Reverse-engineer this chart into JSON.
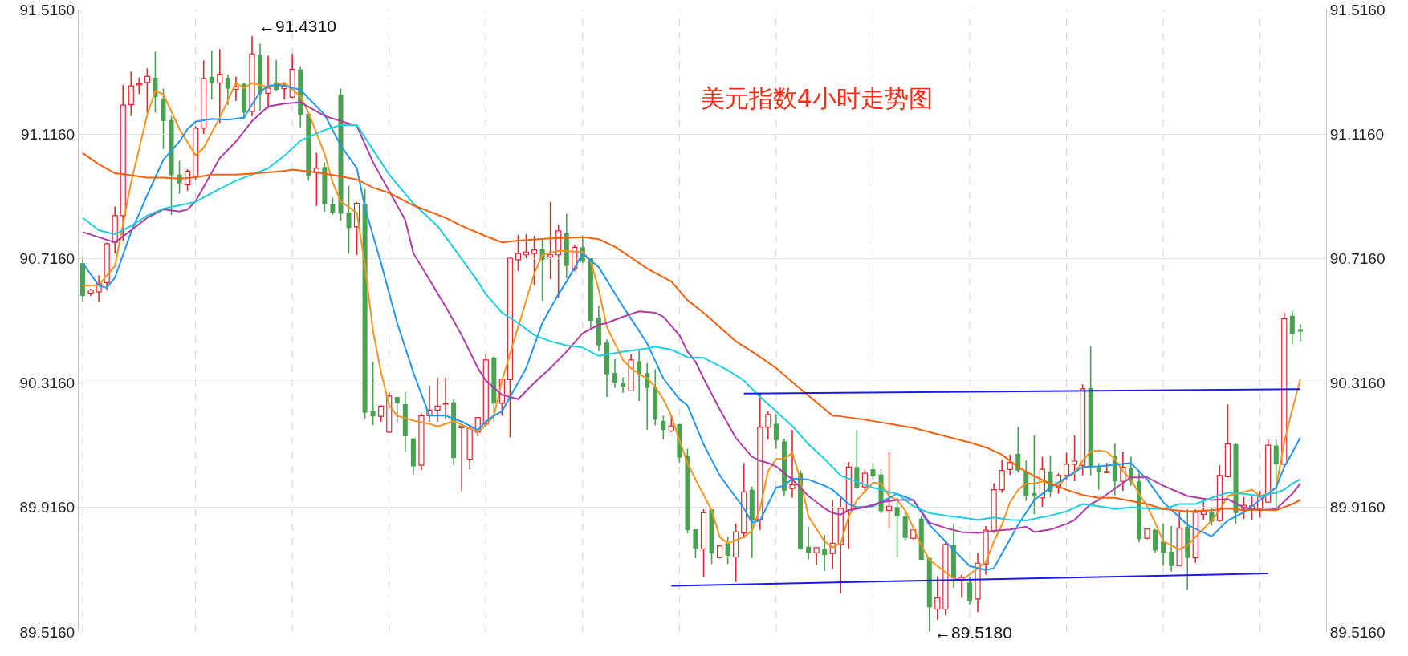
{
  "chart_data": {
    "type": "candlestick",
    "title": "美元指数4小时走势图",
    "categories": [
      null,
      null,
      null,
      null,
      null,
      null,
      null,
      null,
      null,
      null,
      null,
      null,
      null,
      null,
      null,
      null,
      null,
      null,
      null,
      null,
      null,
      null,
      null,
      null,
      null,
      null,
      null,
      null,
      null,
      null,
      null,
      null,
      null,
      null,
      null,
      null,
      null,
      null,
      null,
      null,
      null,
      null,
      null,
      null,
      null,
      null,
      null,
      null,
      null,
      null,
      null,
      null,
      null,
      null,
      null,
      null,
      null,
      null,
      null,
      null,
      null,
      null,
      null,
      null,
      null,
      null,
      null,
      null,
      null,
      null,
      null,
      null,
      null,
      null,
      null,
      null,
      null,
      null,
      null,
      null,
      null,
      null,
      null,
      null,
      null,
      null,
      null,
      null,
      null,
      null,
      null,
      null,
      null,
      null,
      null,
      null,
      null,
      null,
      null,
      null,
      null,
      null,
      null,
      null,
      null,
      null,
      null,
      null,
      null,
      null,
      null,
      null,
      null,
      null,
      null,
      null,
      null,
      null,
      null,
      null,
      null,
      null,
      null,
      null,
      null,
      null,
      null,
      null,
      null,
      null,
      null,
      null,
      null,
      null,
      null,
      null,
      null,
      null,
      null,
      null,
      null,
      null,
      null,
      null,
      null,
      null,
      null,
      null,
      null,
      null,
      null,
      null
    ],
    "ohlc": [
      [
        90.701,
        90.721,
        90.578,
        90.596
      ],
      [
        90.605,
        90.619,
        90.596,
        90.615
      ],
      [
        90.609,
        90.662,
        90.578,
        90.635
      ],
      [
        90.639,
        90.768,
        90.615,
        90.764
      ],
      [
        90.768,
        90.883,
        90.732,
        90.854
      ],
      [
        90.854,
        91.274,
        90.774,
        91.209
      ],
      [
        91.211,
        91.317,
        91.174,
        91.271
      ],
      [
        91.274,
        91.298,
        91.244,
        91.278
      ],
      [
        91.282,
        91.327,
        91.185,
        91.301
      ],
      [
        91.297,
        91.38,
        91.185,
        91.234
      ],
      [
        91.229,
        91.262,
        91.068,
        91.158
      ],
      [
        91.161,
        91.174,
        90.856,
        90.984
      ],
      [
        90.986,
        91.03,
        90.924,
        90.957
      ],
      [
        90.953,
        91.003,
        90.933,
        90.997
      ],
      [
        90.98,
        91.141,
        90.97,
        91.135
      ],
      [
        91.135,
        91.353,
        91.116,
        91.295
      ],
      [
        91.3,
        91.384,
        91.227,
        91.28
      ],
      [
        91.28,
        91.389,
        91.152,
        91.308
      ],
      [
        91.297,
        91.307,
        91.209,
        91.262
      ],
      [
        91.26,
        91.301,
        91.222,
        91.268
      ],
      [
        91.278,
        91.278,
        91.165,
        91.185
      ],
      [
        91.188,
        91.431,
        91.174,
        91.374
      ],
      [
        91.37,
        91.406,
        91.191,
        91.244
      ],
      [
        91.247,
        91.368,
        91.198,
        91.264
      ],
      [
        91.282,
        91.354,
        91.254,
        91.258
      ],
      [
        91.262,
        91.284,
        91.227,
        91.271
      ],
      [
        91.235,
        91.374,
        91.231,
        91.324
      ],
      [
        91.324,
        91.333,
        91.136,
        91.178
      ],
      [
        91.181,
        91.181,
        90.966,
        90.982
      ],
      [
        90.993,
        91.056,
        90.885,
        91.006
      ],
      [
        91.01,
        91.025,
        90.866,
        90.891
      ],
      [
        90.891,
        90.912,
        90.857,
        90.864
      ],
      [
        91.242,
        91.262,
        90.838,
        90.86
      ],
      [
        90.864,
        90.95,
        90.732,
        90.814
      ],
      [
        90.818,
        90.898,
        90.727,
        90.893
      ],
      [
        90.891,
        90.94,
        90.201,
        90.221
      ],
      [
        90.225,
        90.384,
        90.181,
        90.209
      ],
      [
        90.209,
        90.244,
        90.191,
        90.242
      ],
      [
        90.158,
        90.287,
        90.155,
        90.274
      ],
      [
        90.271,
        90.271,
        90.191,
        90.251
      ],
      [
        90.248,
        90.287,
        90.095,
        90.145
      ],
      [
        90.138,
        90.138,
        90.021,
        90.048
      ],
      [
        90.052,
        90.218,
        90.036,
        90.211
      ],
      [
        90.211,
        90.308,
        90.191,
        90.229
      ],
      [
        90.229,
        90.334,
        90.191,
        90.242
      ],
      [
        90.248,
        90.333,
        90.201,
        90.25
      ],
      [
        90.254,
        90.264,
        90.052,
        90.075
      ],
      [
        90.172,
        90.178,
        89.968,
        90.178
      ],
      [
        90.071,
        90.18,
        90.039,
        90.17
      ],
      [
        90.158,
        90.207,
        90.145,
        90.205
      ],
      [
        90.184,
        90.409,
        90.182,
        90.39
      ],
      [
        90.398,
        90.404,
        90.191,
        90.25
      ],
      [
        90.251,
        90.329,
        90.211,
        90.329
      ],
      [
        90.327,
        90.72,
        90.141,
        90.717
      ],
      [
        90.712,
        90.792,
        90.676,
        90.732
      ],
      [
        90.728,
        90.794,
        90.714,
        90.737
      ],
      [
        90.732,
        90.789,
        90.63,
        90.744
      ],
      [
        90.748,
        90.781,
        90.58,
        90.712
      ],
      [
        90.721,
        90.898,
        90.65,
        90.728
      ],
      [
        90.728,
        90.826,
        90.59,
        90.805
      ],
      [
        90.797,
        90.86,
        90.653,
        90.692
      ],
      [
        90.684,
        90.758,
        90.675,
        90.752
      ],
      [
        90.752,
        90.789,
        90.7,
        90.706
      ],
      [
        90.717,
        90.717,
        90.493,
        90.516
      ],
      [
        90.526,
        90.565,
        90.418,
        90.437
      ],
      [
        90.446,
        90.456,
        90.271,
        90.344
      ],
      [
        90.348,
        90.393,
        90.301,
        90.317
      ],
      [
        90.317,
        90.334,
        90.284,
        90.304
      ],
      [
        90.291,
        90.409,
        90.289,
        90.39
      ],
      [
        90.386,
        90.424,
        90.258,
        90.344
      ],
      [
        90.348,
        90.38,
        90.166,
        90.3
      ],
      [
        90.304,
        90.36,
        90.18,
        90.198
      ],
      [
        90.194,
        90.211,
        90.135,
        90.165
      ],
      [
        90.162,
        90.211,
        90.158,
        90.178
      ],
      [
        90.184,
        90.184,
        90.06,
        90.076
      ],
      [
        90.081,
        90.105,
        89.833,
        89.843
      ],
      [
        89.846,
        89.846,
        89.753,
        89.783
      ],
      [
        89.783,
        89.91,
        89.692,
        89.899
      ],
      [
        89.91,
        89.91,
        89.735,
        89.768
      ],
      [
        89.755,
        89.794,
        89.752,
        89.792
      ],
      [
        89.803,
        89.822,
        89.735,
        89.761
      ],
      [
        89.757,
        89.864,
        89.676,
        89.837
      ],
      [
        89.834,
        90.059,
        89.817,
        89.966
      ],
      [
        89.973,
        89.983,
        89.754,
        89.873
      ],
      [
        89.877,
        90.283,
        89.844,
        90.174
      ],
      [
        90.174,
        90.225,
        90.135,
        90.215
      ],
      [
        90.185,
        90.215,
        90.105,
        90.132
      ],
      [
        90.128,
        90.137,
        89.952,
        89.97
      ],
      [
        89.977,
        90.165,
        89.948,
        89.989
      ],
      [
        90.026,
        90.036,
        89.779,
        89.783
      ],
      [
        89.79,
        89.854,
        89.749,
        89.77
      ],
      [
        89.77,
        89.787,
        89.73,
        89.787
      ],
      [
        89.783,
        89.827,
        89.712,
        89.763
      ],
      [
        89.768,
        89.938,
        89.719,
        89.801
      ],
      [
        89.797,
        89.947,
        89.64,
        89.913
      ],
      [
        89.907,
        90.063,
        89.784,
        90.046
      ],
      [
        90.046,
        90.165,
        89.974,
        89.98
      ],
      [
        89.982,
        90.036,
        89.962,
        90.026
      ],
      [
        90.039,
        90.059,
        90.006,
        90.016
      ],
      [
        90.022,
        90.039,
        89.897,
        89.904
      ],
      [
        89.907,
        90.094,
        89.851,
        89.92
      ],
      [
        89.917,
        89.947,
        89.755,
        89.887
      ],
      [
        89.887,
        89.907,
        89.81,
        89.818
      ],
      [
        89.817,
        89.844,
        89.813,
        89.844
      ],
      [
        89.88,
        89.887,
        89.748,
        89.748
      ],
      [
        89.754,
        89.754,
        89.518,
        89.595
      ],
      [
        89.589,
        89.695,
        89.555,
        89.625
      ],
      [
        89.589,
        89.807,
        89.57,
        89.797
      ],
      [
        89.797,
        89.864,
        89.658,
        89.688
      ],
      [
        89.684,
        89.7,
        89.626,
        89.691
      ],
      [
        89.675,
        89.692,
        89.603,
        89.615
      ],
      [
        89.622,
        89.77,
        89.58,
        89.737
      ],
      [
        89.735,
        89.856,
        89.7,
        89.843
      ],
      [
        89.841,
        89.994,
        89.834,
        89.973
      ],
      [
        89.973,
        90.069,
        89.963,
        90.035
      ],
      [
        90.038,
        90.086,
        90.02,
        90.061
      ],
      [
        90.088,
        90.175,
        90.028,
        90.035
      ],
      [
        90.032,
        90.067,
        89.937,
        89.953
      ],
      [
        89.962,
        90.148,
        89.894,
        89.953
      ],
      [
        89.947,
        90.079,
        89.918,
        90.039
      ],
      [
        90.032,
        90.084,
        89.949,
        89.966
      ],
      [
        89.98,
        90.026,
        89.96,
        90.019
      ],
      [
        90.019,
        90.092,
        90.006,
        90.055
      ],
      [
        90.055,
        90.148,
        90.0,
        90.065
      ],
      [
        90.052,
        90.312,
        90.019,
        90.297
      ],
      [
        90.3,
        90.433,
        90.019,
        90.048
      ],
      [
        90.046,
        90.059,
        89.973,
        90.03
      ],
      [
        90.028,
        90.059,
        90.028,
        90.032
      ],
      [
        90.082,
        90.121,
        89.955,
        90.0
      ],
      [
        90.0,
        90.096,
        89.969,
        90.046
      ],
      [
        90.043,
        90.079,
        89.986,
        90.0
      ],
      [
        90.0,
        90.036,
        89.804,
        89.814
      ],
      [
        89.817,
        89.85,
        89.813,
        89.847
      ],
      [
        89.844,
        89.847,
        89.77,
        89.778
      ],
      [
        89.807,
        89.864,
        89.728,
        89.77
      ],
      [
        89.774,
        89.857,
        89.71,
        89.728
      ],
      [
        89.728,
        89.9,
        89.728,
        89.85
      ],
      [
        89.854,
        89.91,
        89.65,
        89.754
      ],
      [
        89.754,
        89.91,
        89.738,
        89.9
      ],
      [
        89.894,
        89.937,
        89.877,
        89.903
      ],
      [
        89.9,
        89.917,
        89.858,
        89.87
      ],
      [
        89.874,
        90.052,
        89.87,
        90.019
      ],
      [
        90.015,
        90.247,
        90.013,
        90.12
      ],
      [
        90.119,
        90.122,
        89.864,
        89.898
      ],
      [
        89.913,
        89.95,
        89.88,
        89.923
      ],
      [
        89.913,
        89.952,
        89.877,
        89.921
      ],
      [
        89.913,
        89.97,
        89.883,
        89.949
      ],
      [
        89.933,
        90.135,
        89.931,
        90.116
      ],
      [
        90.115,
        90.135,
        89.913,
        90.055
      ],
      [
        90.055,
        90.543,
        90.052,
        90.522
      ],
      [
        90.532,
        90.548,
        90.441,
        90.474
      ],
      [
        90.489,
        90.506,
        90.451,
        90.481
      ]
    ],
    "colors": [
      "#48a24f",
      "#e5262d",
      "#e5262d",
      "#e5262d",
      "#e5262d",
      "#e5262d",
      "#e5262d",
      "#e5262d",
      "#e5262d",
      "#48a24f",
      "#48a24f",
      "#48a24f",
      "#48a24f",
      "#e5262d",
      "#e5262d",
      "#e5262d",
      "#48a24f",
      "#e5262d",
      "#48a24f",
      "#e5262d",
      "#48a24f",
      "#e5262d",
      "#48a24f",
      "#e5262d",
      "#48a24f",
      "#e5262d",
      "#e5262d",
      "#48a24f",
      "#48a24f",
      "#e5262d",
      "#48a24f",
      "#48a24f",
      "#48a24f",
      "#48a24f",
      "#e5262d",
      "#48a24f",
      "#48a24f",
      "#e5262d",
      "#e5262d",
      "#48a24f",
      "#48a24f",
      "#48a24f",
      "#e5262d",
      "#e5262d",
      "#e5262d",
      "#e5262d",
      "#48a24f",
      "#e5262d",
      "#e5262d",
      "#e5262d",
      "#e5262d",
      "#48a24f",
      "#e5262d",
      "#e5262d",
      "#e5262d",
      "#e5262d",
      "#e5262d",
      "#48a24f",
      "#e5262d",
      "#e5262d",
      "#48a24f",
      "#e5262d",
      "#48a24f",
      "#48a24f",
      "#48a24f",
      "#48a24f",
      "#48a24f",
      "#48a24f",
      "#e5262d",
      "#48a24f",
      "#48a24f",
      "#48a24f",
      "#48a24f",
      "#e5262d",
      "#48a24f",
      "#48a24f",
      "#48a24f",
      "#e5262d",
      "#48a24f",
      "#e5262d",
      "#48a24f",
      "#e5262d",
      "#e5262d",
      "#48a24f",
      "#e5262d",
      "#e5262d",
      "#48a24f",
      "#48a24f",
      "#e5262d",
      "#48a24f",
      "#48a24f",
      "#e5262d",
      "#48a24f",
      "#e5262d",
      "#e5262d",
      "#e5262d",
      "#48a24f",
      "#e5262d",
      "#48a24f",
      "#48a24f",
      "#e5262d",
      "#48a24f",
      "#48a24f",
      "#e5262d",
      "#48a24f",
      "#48a24f",
      "#e5262d",
      "#e5262d",
      "#48a24f",
      "#e5262d",
      "#48a24f",
      "#e5262d",
      "#e5262d",
      "#e5262d",
      "#e5262d",
      "#e5262d",
      "#48a24f",
      "#48a24f",
      "#48a24f",
      "#e5262d",
      "#48a24f",
      "#e5262d",
      "#e5262d",
      "#e5262d",
      "#e5262d",
      "#48a24f",
      "#48a24f",
      "#e5262d",
      "#48a24f",
      "#e5262d",
      "#48a24f",
      "#48a24f",
      "#e5262d",
      "#48a24f",
      "#48a24f",
      "#48a24f",
      "#e5262d",
      "#48a24f",
      "#e5262d",
      "#e5262d",
      "#48a24f",
      "#e5262d",
      "#e5262d",
      "#48a24f",
      "#e5262d",
      "#e5262d",
      "#e5262d",
      "#e5262d",
      "#48a24f",
      "#e5262d",
      "#48a24f",
      "#48a24f"
    ],
    "series": [
      {
        "type": "line",
        "color": "#f7931e",
        "values": [
          90.629,
          null,
          90.631,
          null,
          90.692,
          null,
          90.96,
          null,
          91.178,
          91.255,
          91.244,
          null,
          91.132,
          null,
          91.048,
          91.072,
          null,
          91.169,
          null,
          91.28,
          91.264,
          91.28,
          null,
          91.267,
          null,
          91.28,
          null,
          91.238,
          91.185,
          null,
          91.052,
          90.96,
          90.9,
          null,
          90.863,
          90.695,
          90.483,
          90.35,
          90.244,
          90.211,
          null,
          90.195,
          null,
          90.185,
          90.176,
          null,
          90.194,
          null,
          null,
          90.158,
          90.181,
          90.211,
          90.324,
          null,
          90.496,
          null,
          90.668,
          90.728,
          null,
          90.741,
          null,
          null,
          90.737,
          90.708,
          90.615,
          90.496,
          90.443,
          90.39,
          90.364,
          90.344,
          90.331,
          90.304,
          90.264,
          90.211,
          90.132,
          90.059,
          90.006,
          null,
          89.907,
          89.821,
          89.801,
          null,
          89.821,
          89.841,
          89.913,
          90.033,
          90.072,
          90.072,
          90.092,
          90.006,
          89.887,
          null,
          89.807,
          89.788,
          89.801,
          89.887,
          89.94,
          null,
          89.996,
          89.993,
          89.953,
          89.94,
          89.907,
          null,
          89.794,
          89.748,
          null,
          89.708,
          89.688,
          89.682,
          89.701,
          89.721,
          89.741,
          89.807,
          89.86,
          89.933,
          89.973,
          89.993,
          89.993,
          89.999,
          89.993,
          89.986,
          90.013,
          90.026,
          90.066,
          90.096,
          90.099,
          90.095,
          90.072,
          90.033,
          90.006,
          89.96,
          89.92,
          89.867,
          89.807,
          89.794,
          89.781,
          89.794,
          89.821,
          89.847,
          89.874,
          89.907,
          89.953,
          89.96,
          89.966,
          89.973,
          89.953,
          89.96,
          89.98,
          90.125,
          90.231,
          90.327
        ]
      },
      {
        "type": "line",
        "color": "#2196f3",
        "values": [
          90.701,
          null,
          90.629,
          90.622,
          90.655,
          null,
          90.801,
          null,
          90.92,
          null,
          91.033,
          null,
          91.092,
          91.132,
          91.156,
          null,
          91.165,
          null,
          91.162,
          null,
          91.169,
          91.211,
          91.251,
          91.271,
          91.274,
          91.271,
          null,
          91.258,
          null,
          null,
          91.178,
          null,
          91.079,
          null,
          91.006,
          90.88,
          null,
          90.701,
          null,
          90.509,
          null,
          90.35,
          null,
          90.211,
          null,
          90.211,
          null,
          90.192,
          null,
          90.165,
          90.192,
          90.211,
          90.225,
          null,
          null,
          90.364,
          null,
          90.509,
          null,
          90.602,
          90.642,
          null,
          90.731,
          null,
          90.688,
          null,
          null,
          90.562,
          null,
          90.483,
          90.443,
          null,
          90.331,
          null,
          90.264,
          90.244,
          null,
          90.119,
          null,
          90.019,
          null,
          null,
          89.913,
          89.867,
          89.874,
          null,
          89.98,
          89.986,
          90.009,
          null,
          90.006,
          null,
          89.986,
          89.973,
          null,
          89.927,
          89.917,
          null,
          89.92,
          null,
          89.947,
          89.96,
          null,
          89.94,
          null,
          89.86,
          null,
          89.807,
          null,
          null,
          89.728,
          null,
          89.715,
          89.721,
          89.768,
          null,
          89.86,
          null,
          89.94,
          null,
          89.98,
          null,
          90.013,
          null,
          90.046,
          null,
          90.048,
          null,
          null,
          null,
          90.059,
          null,
          90.006,
          null,
          89.933,
          null,
          null,
          89.86,
          null,
          null,
          89.823,
          null,
          89.874,
          null,
          89.9,
          null,
          89.94,
          null,
          89.98,
          90.046,
          90.092,
          90.141
        ]
      },
      {
        "type": "line",
        "color": "#b03aa8",
        "values": [
          90.801,
          null,
          null,
          null,
          90.768,
          null,
          90.807,
          null,
          90.847,
          null,
          90.874,
          null,
          90.867,
          90.874,
          90.9,
          null,
          null,
          91.039,
          null,
          91.092,
          null,
          91.158,
          null,
          91.205,
          null,
          91.214,
          null,
          91.218,
          null,
          null,
          91.174,
          null,
          null,
          null,
          91.142,
          null,
          91.026,
          null,
          null,
          null,
          90.84,
          90.734,
          null,
          null,
          null,
          90.562,
          null,
          90.47,
          null,
          90.364,
          90.324,
          null,
          90.278,
          null,
          90.264,
          null,
          90.317,
          null,
          90.364,
          null,
          90.417,
          null,
          90.476,
          null,
          90.503,
          90.509,
          null,
          90.529,
          null,
          90.546,
          null,
          90.542,
          90.529,
          null,
          90.47,
          90.417,
          90.384,
          90.331,
          null,
          90.231,
          null,
          90.139,
          null,
          90.079,
          90.066,
          90.059,
          90.048,
          null,
          90.006,
          null,
          89.953,
          null,
          89.913,
          89.898,
          89.893,
          89.907,
          null,
          89.917,
          null,
          89.933,
          null,
          89.94,
          null,
          89.94,
          null,
          89.867,
          null,
          89.85,
          null,
          89.837,
          null,
          89.834,
          null,
          89.841,
          null,
          89.845,
          null,
          89.854,
          89.837,
          null,
          89.845,
          null,
          89.863,
          89.876,
          null,
          89.927,
          89.94,
          null,
          null,
          null,
          90.013,
          null,
          90.013,
          null,
          89.986,
          null,
          null,
          89.953,
          null,
          null,
          89.94,
          null,
          89.943,
          null,
          89.916,
          null,
          89.907,
          null,
          89.911,
          null,
          89.96,
          89.993
        ]
      },
      {
        "type": "line",
        "color": "#1ccfe0",
        "values": [
          90.847,
          null,
          90.807,
          null,
          90.794,
          null,
          90.821,
          null,
          90.854,
          null,
          90.876,
          null,
          90.887,
          null,
          90.898,
          null,
          90.927,
          null,
          null,
          90.966,
          null,
          90.986,
          null,
          91.006,
          null,
          91.046,
          null,
          91.095,
          null,
          null,
          91.129,
          null,
          91.145,
          null,
          91.145,
          null,
          91.066,
          null,
          90.986,
          null,
          null,
          90.893,
          null,
          null,
          90.821,
          null,
          null,
          90.715,
          null,
          90.642,
          90.602,
          null,
          90.542,
          null,
          90.509,
          null,
          90.47,
          null,
          90.45,
          null,
          90.437,
          null,
          90.43,
          null,
          90.403,
          null,
          null,
          90.417,
          null,
          null,
          90.427,
          90.433,
          null,
          90.423,
          null,
          90.399,
          null,
          90.397,
          null,
          null,
          90.357,
          null,
          90.324,
          null,
          90.271,
          null,
          90.225,
          null,
          90.178,
          null,
          90.119,
          null,
          90.072,
          null,
          90.019,
          null,
          89.999,
          null,
          89.98,
          null,
          89.966,
          89.96,
          null,
          89.92,
          null,
          89.898,
          null,
          89.89,
          null,
          89.884,
          null,
          89.876,
          null,
          89.884,
          null,
          89.876,
          null,
          89.874,
          null,
          null,
          89.89,
          null,
          89.903,
          null,
          89.927,
          null,
          89.92,
          null,
          89.911,
          null,
          89.916,
          null,
          89.913,
          null,
          89.911,
          null,
          89.927,
          null,
          89.927,
          null,
          89.947,
          null,
          89.964,
          null,
          89.96,
          null,
          89.953,
          null,
          89.964,
          89.973,
          89.993,
          90.006
        ]
      },
      {
        "type": "line",
        "color": "#f7600a",
        "values": [
          91.055,
          null,
          91.019,
          null,
          90.99,
          null,
          90.984,
          null,
          90.976,
          null,
          90.976,
          null,
          90.973,
          null,
          90.977,
          null,
          90.986,
          null,
          null,
          90.986,
          null,
          90.989,
          null,
          null,
          null,
          90.997,
          91.002,
          null,
          null,
          90.993,
          null,
          null,
          90.98,
          null,
          90.97,
          null,
          90.944,
          null,
          90.927,
          null,
          null,
          90.887,
          null,
          null,
          null,
          90.847,
          null,
          90.821,
          null,
          null,
          90.788,
          null,
          90.768,
          null,
          90.774,
          null,
          null,
          null,
          90.781,
          null,
          null,
          null,
          90.785,
          null,
          90.778,
          null,
          90.754,
          null,
          null,
          null,
          90.684,
          null,
          null,
          90.642,
          null,
          90.582,
          null,
          90.542,
          null,
          null,
          null,
          90.45,
          null,
          90.417,
          null,
          null,
          90.364,
          null,
          null,
          90.297,
          null,
          null,
          null,
          90.211,
          90.209,
          null,
          null,
          90.198,
          null,
          null,
          null,
          90.181,
          null,
          90.172,
          null,
          null,
          null,
          90.145,
          null,
          null,
          90.125,
          null,
          90.109,
          null,
          90.086,
          null,
          90.046,
          null,
          90.017,
          null,
          89.993,
          null,
          89.973,
          null,
          89.956,
          null,
          89.947,
          null,
          89.947,
          null,
          89.937,
          null,
          89.927,
          null,
          89.911,
          null,
          null,
          89.903,
          null,
          null,
          89.907,
          null,
          89.913,
          null,
          89.907,
          null,
          89.909,
          null,
          89.907,
          null,
          89.927,
          89.94
        ]
      },
      {
        "type": "line",
        "color": "#1a1aee",
        "values": [
          null,
          null,
          null,
          null,
          null,
          null,
          null,
          null,
          null,
          null,
          null,
          null,
          null,
          null,
          null,
          null,
          null,
          null,
          null,
          null,
          null,
          null,
          null,
          null,
          null,
          null,
          null,
          null,
          null,
          null,
          null,
          null,
          null,
          null,
          null,
          null,
          null,
          null,
          null,
          null,
          null,
          null,
          null,
          null,
          null,
          null,
          null,
          null,
          null,
          null,
          null,
          null,
          null,
          null,
          null,
          null,
          null,
          null,
          null,
          null,
          null,
          null,
          null,
          null,
          null,
          null,
          null,
          null,
          null,
          null,
          null,
          null,
          null,
          null,
          null,
          null,
          null,
          null,
          null,
          null,
          null,
          null,
          90.282,
          null,
          null,
          null,
          null,
          null,
          null,
          null,
          null,
          null,
          null,
          null,
          null,
          null,
          null,
          null,
          null,
          null,
          null,
          null,
          null,
          null,
          null,
          null,
          null,
          null,
          null,
          null,
          null,
          null,
          null,
          null,
          null,
          null,
          null,
          null,
          null,
          null,
          null,
          null,
          null,
          null,
          null,
          null,
          null,
          null,
          null,
          null,
          null,
          null,
          null,
          null,
          null,
          null,
          null,
          null,
          null,
          null,
          null,
          null,
          null,
          null,
          null,
          null,
          null,
          null,
          null,
          null,
          null,
          90.296
        ]
      },
      {
        "type": "line",
        "color": "#1a1aee",
        "values": [
          null,
          null,
          null,
          null,
          null,
          null,
          null,
          null,
          null,
          null,
          null,
          null,
          null,
          null,
          null,
          null,
          null,
          null,
          null,
          null,
          null,
          null,
          null,
          null,
          null,
          null,
          null,
          null,
          null,
          null,
          null,
          null,
          null,
          null,
          null,
          null,
          null,
          null,
          null,
          null,
          null,
          null,
          null,
          null,
          null,
          null,
          null,
          null,
          null,
          null,
          null,
          null,
          null,
          null,
          null,
          null,
          null,
          null,
          null,
          null,
          null,
          null,
          null,
          null,
          null,
          null,
          null,
          null,
          null,
          null,
          null,
          null,
          null,
          89.664,
          null,
          null,
          null,
          null,
          null,
          null,
          null,
          null,
          null,
          null,
          null,
          null,
          null,
          null,
          null,
          null,
          null,
          null,
          null,
          null,
          null,
          null,
          null,
          null,
          null,
          null,
          null,
          null,
          null,
          null,
          null,
          null,
          null,
          null,
          null,
          null,
          null,
          null,
          null,
          null,
          null,
          null,
          null,
          null,
          null,
          null,
          null,
          null,
          null,
          null,
          null,
          null,
          null,
          null,
          null,
          null,
          null,
          null,
          null,
          null,
          null,
          null,
          null,
          null,
          null,
          null,
          null,
          null,
          null,
          null,
          null,
          null,
          null,
          89.704,
          null,
          null,
          null,
          null
        ]
      }
    ],
    "annotations": [
      "←91.4310",
      "←89.5180"
    ],
    "ylim": [
      89.516,
      91.516
    ],
    "yticks": [
      {
        "value": 89.516,
        "label": "89.5160"
      },
      {
        "value": 89.916,
        "label": "89.9160"
      },
      {
        "value": 90.316,
        "label": "90.3160"
      },
      {
        "value": 90.716,
        "label": "90.7160"
      },
      {
        "value": 91.116,
        "label": "91.1160"
      },
      {
        "value": 91.516,
        "label": "91.5160"
      }
    ],
    "y2lim": [
      89.516,
      91.516
    ],
    "y2ticks": [
      {
        "value": 89.516,
        "label": "89.5160"
      },
      {
        "value": 89.916,
        "label": "89.9160"
      },
      {
        "value": 90.316,
        "label": "90.3160"
      },
      {
        "value": 90.716,
        "label": "90.7160"
      },
      {
        "value": 91.116,
        "label": "91.1160"
      },
      {
        "value": 91.516,
        "label": "91.5160"
      }
    ],
    "grid": "y",
    "tick_labels": "y"
  }
}
